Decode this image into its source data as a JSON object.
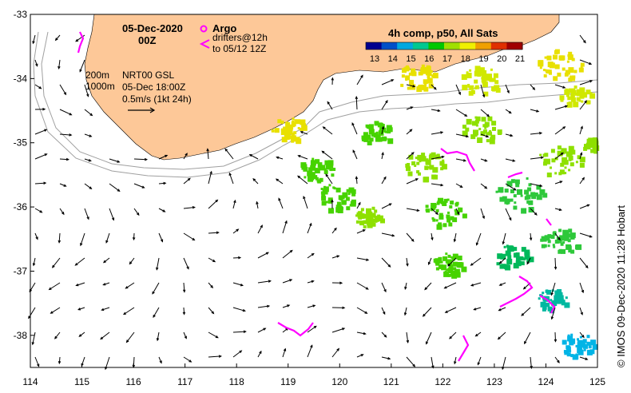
{
  "title": {
    "date": "05-Dec-2020",
    "time": "00Z"
  },
  "legend": {
    "argo_label": "Argo",
    "drifters_label_line1": "drifters@12h",
    "drifters_label_line2": "to 05/12 12Z",
    "argo_color": "#ff00ff",
    "drifter_color": "#ff00ff"
  },
  "colorbar": {
    "title": "4h comp, p50, All Sats",
    "tick_labels": [
      "13",
      "14",
      "15",
      "16",
      "17",
      "18",
      "19",
      "20",
      "21"
    ],
    "colors": [
      "#00008f",
      "#0050c8",
      "#00a8e0",
      "#00c890",
      "#00c800",
      "#a0e000",
      "#f0f000",
      "#f0a000",
      "#e03000",
      "#a00000"
    ]
  },
  "contours": {
    "line1": "200m",
    "line2": "1000m"
  },
  "info": {
    "line1": "NRT00 GSL",
    "line2": "05-Dec 18:00Z",
    "line3": "0.5m/s (1kt 24h)"
  },
  "credit": "©  IMOS 09-Dec-2020 11:28 Hobart",
  "axes": {
    "x_ticks": [
      "114",
      "115",
      "116",
      "117",
      "118",
      "119",
      "120",
      "121",
      "122",
      "123",
      "124",
      "125"
    ],
    "y_ticks": [
      "-33",
      "-34",
      "-35",
      "-36",
      "-37",
      "-38"
    ],
    "lon_range": [
      114,
      125
    ],
    "lat_range": [
      -38.5,
      -33
    ]
  },
  "colors": {
    "land": "#fdc898",
    "sea": "#ffffff"
  }
}
